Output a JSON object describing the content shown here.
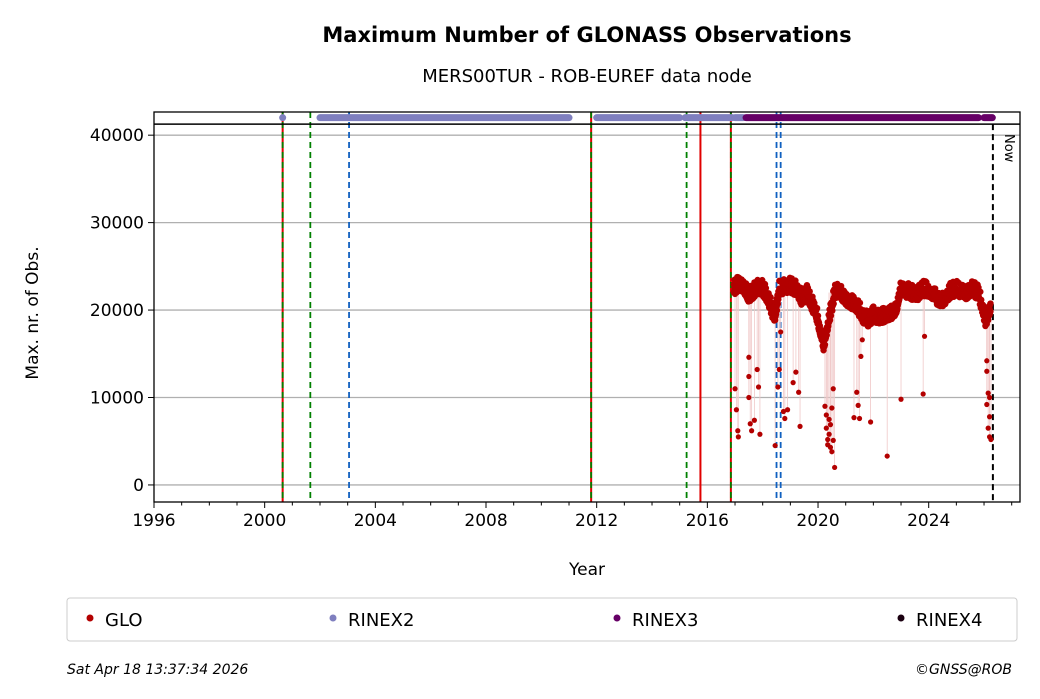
{
  "chart_data": {
    "type": "scatter",
    "title": "Maximum Number of GLONASS Observations",
    "subtitle": "MERS00TUR - ROB-EUREF data node",
    "xlabel": "Year",
    "ylabel": "Max. nr. of Obs.",
    "xlim": [
      1996,
      2027.3
    ],
    "ylim": [
      -1950,
      42650
    ],
    "xticks": [
      1996,
      2000,
      2004,
      2008,
      2012,
      2016,
      2020,
      2024
    ],
    "yticks": [
      0,
      10000,
      20000,
      30000,
      40000
    ],
    "grid": "horizontal",
    "now_label": "Now",
    "now_year": 2026.32,
    "band_value": 42000,
    "band_separator": 41260,
    "vlines": [
      {
        "year": 2000.65,
        "color": "#e00000",
        "style": "solid"
      },
      {
        "year": 2000.65,
        "color": "#008000",
        "style": "dashed"
      },
      {
        "year": 2001.65,
        "color": "#008000",
        "style": "dashed"
      },
      {
        "year": 2003.05,
        "color": "#1060c0",
        "style": "dashed"
      },
      {
        "year": 2011.8,
        "color": "#e00000",
        "style": "solid"
      },
      {
        "year": 2011.8,
        "color": "#008000",
        "style": "dashed"
      },
      {
        "year": 2015.25,
        "color": "#008000",
        "style": "dashed"
      },
      {
        "year": 2015.75,
        "color": "#e00000",
        "style": "solid"
      },
      {
        "year": 2016.85,
        "color": "#e00000",
        "style": "solid"
      },
      {
        "year": 2016.85,
        "color": "#008000",
        "style": "dashed"
      },
      {
        "year": 2018.5,
        "color": "#1060c0",
        "style": "dashed"
      },
      {
        "year": 2018.65,
        "color": "#1060c0",
        "style": "dashed"
      }
    ],
    "series": [
      {
        "name": "GLO",
        "color": "#b30000",
        "trend": [
          [
            2016.95,
            22500
          ],
          [
            2017.1,
            23000
          ],
          [
            2017.3,
            22800
          ],
          [
            2017.5,
            21800
          ],
          [
            2017.65,
            22000
          ],
          [
            2017.8,
            22800
          ],
          [
            2018.0,
            22500
          ],
          [
            2018.2,
            21500
          ],
          [
            2018.35,
            20000
          ],
          [
            2018.45,
            19500
          ],
          [
            2018.6,
            22500
          ],
          [
            2018.8,
            22800
          ],
          [
            2019.0,
            22900
          ],
          [
            2019.2,
            22500
          ],
          [
            2019.4,
            21500
          ],
          [
            2019.6,
            22000
          ],
          [
            2019.75,
            21000
          ],
          [
            2019.9,
            20000
          ],
          [
            2020.0,
            19000
          ],
          [
            2020.1,
            17500
          ],
          [
            2020.2,
            16200
          ],
          [
            2020.6,
            22000
          ],
          [
            2020.75,
            22500
          ],
          [
            2020.9,
            21800
          ],
          [
            2021.0,
            21500
          ],
          [
            2021.2,
            21000
          ],
          [
            2021.4,
            20500
          ],
          [
            2021.6,
            19500
          ],
          [
            2021.8,
            19000
          ],
          [
            2022.0,
            19500
          ],
          [
            2022.2,
            19200
          ],
          [
            2022.4,
            19500
          ],
          [
            2022.6,
            19800
          ],
          [
            2022.8,
            20000
          ],
          [
            2023.0,
            22500
          ],
          [
            2023.2,
            22300
          ],
          [
            2023.4,
            22000
          ],
          [
            2023.6,
            22000
          ],
          [
            2023.8,
            22500
          ],
          [
            2024.0,
            22300
          ],
          [
            2024.2,
            22000
          ],
          [
            2024.4,
            21000
          ],
          [
            2024.6,
            21500
          ],
          [
            2024.8,
            22300
          ],
          [
            2025.0,
            22500
          ],
          [
            2025.2,
            22200
          ],
          [
            2025.4,
            22000
          ],
          [
            2025.6,
            22500
          ],
          [
            2025.8,
            22000
          ],
          [
            2026.05,
            19000
          ],
          [
            2026.15,
            19500
          ],
          [
            2026.25,
            21000
          ]
        ],
        "outliers": [
          [
            2017.0,
            11000
          ],
          [
            2017.05,
            8600
          ],
          [
            2017.1,
            6200
          ],
          [
            2017.12,
            5500
          ],
          [
            2017.5,
            14600
          ],
          [
            2017.5,
            12400
          ],
          [
            2017.5,
            10000
          ],
          [
            2017.55,
            7000
          ],
          [
            2017.6,
            6200
          ],
          [
            2017.7,
            7400
          ],
          [
            2017.8,
            13200
          ],
          [
            2017.85,
            11200
          ],
          [
            2017.9,
            5800
          ],
          [
            2018.45,
            4500
          ],
          [
            2018.55,
            11200
          ],
          [
            2018.6,
            13200
          ],
          [
            2018.65,
            17500
          ],
          [
            2018.75,
            8400
          ],
          [
            2018.8,
            7600
          ],
          [
            2018.9,
            8600
          ],
          [
            2019.2,
            12900
          ],
          [
            2019.1,
            11700
          ],
          [
            2019.3,
            10600
          ],
          [
            2019.35,
            6700
          ],
          [
            2020.25,
            9000
          ],
          [
            2020.3,
            8000
          ],
          [
            2020.3,
            6500
          ],
          [
            2020.35,
            5200
          ],
          [
            2020.35,
            4600
          ],
          [
            2020.4,
            7500
          ],
          [
            2020.4,
            5800
          ],
          [
            2020.45,
            4300
          ],
          [
            2020.45,
            6900
          ],
          [
            2020.5,
            3800
          ],
          [
            2020.5,
            8800
          ],
          [
            2020.55,
            5100
          ],
          [
            2020.6,
            2000
          ],
          [
            2020.55,
            11000
          ],
          [
            2021.4,
            10600
          ],
          [
            2021.45,
            9100
          ],
          [
            2021.3,
            7700
          ],
          [
            2021.5,
            7600
          ],
          [
            2021.9,
            7200
          ],
          [
            2022.5,
            3300
          ],
          [
            2021.55,
            14700
          ],
          [
            2021.6,
            16600
          ],
          [
            2023.0,
            9800
          ],
          [
            2023.8,
            10400
          ],
          [
            2023.85,
            17000
          ],
          [
            2026.1,
            14200
          ],
          [
            2026.1,
            13000
          ],
          [
            2026.15,
            10500
          ],
          [
            2026.1,
            9200
          ],
          [
            2026.2,
            7800
          ],
          [
            2026.15,
            6500
          ],
          [
            2026.2,
            5500
          ],
          [
            2026.25,
            5200
          ],
          [
            2026.2,
            10000
          ]
        ]
      },
      {
        "name": "RINEX2",
        "color": "#7f7fbf",
        "segments": [
          [
            2000.65,
            2000.65
          ],
          [
            2002.0,
            2011.0
          ],
          [
            2012.0,
            2015.0
          ],
          [
            2015.2,
            2016.9
          ],
          [
            2017.0,
            2017.3
          ]
        ]
      },
      {
        "name": "RINEX3",
        "color": "#660066",
        "segments": [
          [
            2017.4,
            2025.8
          ],
          [
            2026.0,
            2026.3
          ]
        ]
      },
      {
        "name": "RINEX4",
        "color": "#1a0010",
        "segments": []
      }
    ]
  },
  "footer": {
    "timestamp": "Sat Apr 18 13:37:34 2026",
    "copyright": "©GNSS@ROB"
  }
}
